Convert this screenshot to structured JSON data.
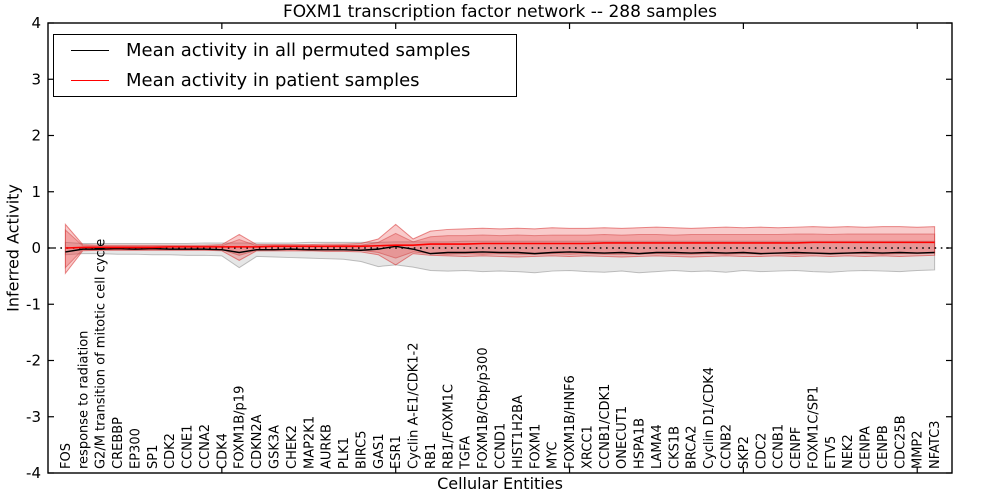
{
  "chart_data": {
    "type": "line",
    "title": "FOXM1 transcription factor network -- 288 samples",
    "xlabel": "Cellular Entities",
    "ylabel": "Inferred Activity",
    "ylim": [
      -4,
      4
    ],
    "yticks": [
      4,
      3,
      2,
      1,
      0,
      -1,
      -2,
      -3,
      -4
    ],
    "xtick_interval": 10,
    "grid": false,
    "legend_position": "upper left",
    "zero_line": {
      "value": 0,
      "style": "dotted",
      "color": "#000000"
    },
    "categories": [
      "FOS",
      "response to radiation",
      "G2/M transition of mitotic cell cycle",
      "CREBBP",
      "EP300",
      "SP1",
      "CDK2",
      "CCNE1",
      "CCNA2",
      "CDK4",
      "FOXM1B/p19",
      "CDKN2A",
      "GSK3A",
      "CHEK2",
      "MAP2K1",
      "AURKB",
      "PLK1",
      "BIRC5",
      "GAS1",
      "ESR1",
      "Cyclin A-E1/CDK1-2",
      "RB1",
      "RB1/FOXM1C",
      "TGFA",
      "FOXM1B/Cbp/p300",
      "CCND1",
      "HIST1H2BA",
      "FOXM1",
      "MYC",
      "FOXM1B/HNF6",
      "XRCC1",
      "CCNB1/CDK1",
      "ONECUT1",
      "HSPA1B",
      "LAMA4",
      "CKS1B",
      "BRCA2",
      "Cyclin D1/CDK4",
      "CCNB2",
      "SKP2",
      "CDC2",
      "CCNB1",
      "CENPF",
      "FOXM1C/SP1",
      "ETV5",
      "NEK2",
      "CENPA",
      "CENPB",
      "CDC25B",
      "MMP2",
      "NFATC3"
    ],
    "series": [
      {
        "name": "Mean activity in all permuted samples",
        "color": "#000000",
        "values": [
          -0.07,
          -0.02,
          -0.02,
          -0.01,
          -0.02,
          -0.01,
          -0.02,
          -0.02,
          -0.02,
          -0.03,
          -0.08,
          -0.03,
          -0.03,
          -0.02,
          -0.03,
          -0.03,
          -0.03,
          -0.04,
          -0.02,
          0.03,
          -0.02,
          -0.1,
          -0.08,
          -0.08,
          -0.07,
          -0.08,
          -0.08,
          -0.1,
          -0.08,
          -0.07,
          -0.08,
          -0.09,
          -0.08,
          -0.1,
          -0.08,
          -0.08,
          -0.09,
          -0.08,
          -0.09,
          -0.08,
          -0.1,
          -0.09,
          -0.08,
          -0.09,
          -0.1,
          -0.09,
          -0.08,
          -0.09,
          -0.08,
          -0.09,
          -0.08
        ]
      },
      {
        "name": "Mean activity in patient samples",
        "color": "#ff0000",
        "values": [
          0.0,
          0.01,
          0.01,
          0.01,
          0.01,
          0.01,
          0.02,
          0.02,
          0.02,
          0.02,
          0.02,
          0.02,
          0.03,
          0.03,
          0.03,
          0.03,
          0.03,
          0.03,
          0.04,
          0.05,
          0.05,
          0.07,
          0.07,
          0.07,
          0.08,
          0.08,
          0.08,
          0.08,
          0.08,
          0.08,
          0.08,
          0.09,
          0.09,
          0.09,
          0.09,
          0.09,
          0.09,
          0.09,
          0.09,
          0.09,
          0.09,
          0.09,
          0.09,
          0.1,
          0.1,
          0.1,
          0.1,
          0.1,
          0.1,
          0.1,
          0.1
        ]
      }
    ],
    "bands": [
      {
        "name": "permuted-samples-range",
        "fill": "rgba(140,140,140,0.22)",
        "edge": "rgba(120,120,120,0.45)",
        "upper": [
          0.1,
          0.08,
          0.08,
          0.08,
          0.08,
          0.08,
          0.08,
          0.08,
          0.09,
          0.09,
          0.09,
          0.09,
          0.09,
          0.09,
          0.1,
          0.1,
          0.1,
          0.1,
          0.1,
          0.11,
          0.11,
          0.11,
          0.11,
          0.12,
          0.12,
          0.12,
          0.12,
          0.12,
          0.12,
          0.12,
          0.12,
          0.12,
          0.12,
          0.12,
          0.12,
          0.12,
          0.12,
          0.12,
          0.12,
          0.12,
          0.12,
          0.12,
          0.12,
          0.12,
          0.12,
          0.12,
          0.12,
          0.12,
          0.12,
          0.12,
          0.12
        ],
        "lower": [
          -0.12,
          -0.1,
          -0.1,
          -0.11,
          -0.11,
          -0.12,
          -0.12,
          -0.13,
          -0.13,
          -0.14,
          -0.35,
          -0.15,
          -0.16,
          -0.17,
          -0.18,
          -0.19,
          -0.2,
          -0.24,
          -0.33,
          -0.3,
          -0.34,
          -0.4,
          -0.41,
          -0.4,
          -0.42,
          -0.41,
          -0.42,
          -0.44,
          -0.41,
          -0.4,
          -0.42,
          -0.43,
          -0.41,
          -0.44,
          -0.42,
          -0.4,
          -0.42,
          -0.41,
          -0.43,
          -0.4,
          -0.42,
          -0.41,
          -0.4,
          -0.42,
          -0.43,
          -0.41,
          -0.4,
          -0.41,
          -0.42,
          -0.4,
          -0.39
        ]
      },
      {
        "name": "patient-samples-range-outer",
        "fill": "rgba(235,70,70,0.28)",
        "edge": "rgba(215,45,45,0.55)",
        "upper": [
          0.42,
          0.06,
          0.05,
          0.05,
          0.05,
          0.05,
          0.05,
          0.05,
          0.05,
          0.06,
          0.24,
          0.06,
          0.06,
          0.06,
          0.06,
          0.07,
          0.07,
          0.08,
          0.16,
          0.42,
          0.16,
          0.3,
          0.33,
          0.34,
          0.35,
          0.34,
          0.35,
          0.34,
          0.36,
          0.35,
          0.35,
          0.36,
          0.35,
          0.36,
          0.37,
          0.36,
          0.35,
          0.36,
          0.37,
          0.36,
          0.37,
          0.36,
          0.37,
          0.38,
          0.37,
          0.38,
          0.37,
          0.38,
          0.38,
          0.37,
          0.38
        ],
        "lower": [
          -0.45,
          -0.05,
          -0.04,
          -0.04,
          -0.04,
          -0.04,
          -0.04,
          -0.04,
          -0.04,
          -0.05,
          -0.22,
          -0.05,
          -0.05,
          -0.05,
          -0.05,
          -0.06,
          -0.06,
          -0.07,
          -0.12,
          -0.3,
          -0.1,
          -0.13,
          -0.14,
          -0.15,
          -0.14,
          -0.15,
          -0.16,
          -0.15,
          -0.14,
          -0.15,
          -0.14,
          -0.15,
          -0.16,
          -0.15,
          -0.14,
          -0.15,
          -0.16,
          -0.15,
          -0.14,
          -0.15,
          -0.15,
          -0.14,
          -0.15,
          -0.14,
          -0.15,
          -0.14,
          -0.15,
          -0.14,
          -0.15,
          -0.14,
          -0.13
        ]
      },
      {
        "name": "patient-samples-range-inner",
        "fill": "rgba(230,60,60,0.28)",
        "edge": "rgba(200,40,40,0.4)",
        "upper": [
          0.32,
          0.04,
          0.03,
          0.03,
          0.03,
          0.03,
          0.03,
          0.03,
          0.03,
          0.04,
          0.15,
          0.04,
          0.04,
          0.04,
          0.04,
          0.04,
          0.05,
          0.05,
          0.1,
          0.26,
          0.11,
          0.2,
          0.22,
          0.22,
          0.23,
          0.22,
          0.23,
          0.22,
          0.23,
          0.23,
          0.23,
          0.24,
          0.23,
          0.24,
          0.24,
          0.23,
          0.24,
          0.24,
          0.24,
          0.24,
          0.24,
          0.24,
          0.25,
          0.25,
          0.24,
          0.25,
          0.25,
          0.25,
          0.25,
          0.25,
          0.25
        ],
        "lower": [
          -0.35,
          -0.03,
          -0.03,
          -0.03,
          -0.03,
          -0.03,
          -0.03,
          -0.03,
          -0.03,
          -0.03,
          -0.13,
          -0.04,
          -0.03,
          -0.03,
          -0.04,
          -0.04,
          -0.04,
          -0.04,
          -0.08,
          -0.18,
          -0.07,
          -0.1,
          -0.11,
          -0.1,
          -0.11,
          -0.1,
          -0.11,
          -0.11,
          -0.1,
          -0.11,
          -0.1,
          -0.11,
          -0.11,
          -0.11,
          -0.1,
          -0.11,
          -0.11,
          -0.1,
          -0.11,
          -0.1,
          -0.11,
          -0.1,
          -0.11,
          -0.1,
          -0.11,
          -0.1,
          -0.1,
          -0.11,
          -0.1,
          -0.1,
          -0.09
        ]
      }
    ]
  },
  "legend": {
    "items": [
      {
        "label": "Mean activity in all permuted samples",
        "color": "#000000"
      },
      {
        "label": "Mean activity in patient samples",
        "color": "#ff0000"
      }
    ]
  }
}
